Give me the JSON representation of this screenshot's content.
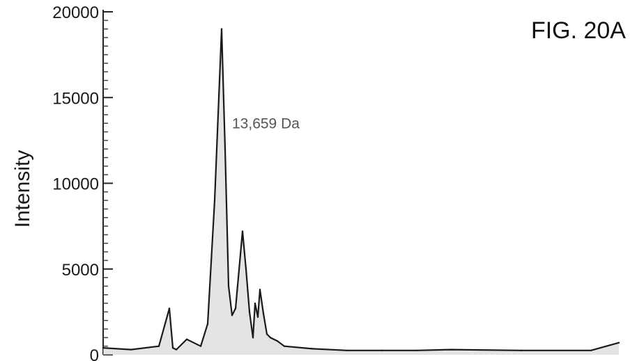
{
  "figure_label": "FIG. 20A",
  "chart_data": {
    "type": "line",
    "title": "",
    "xlabel": "",
    "ylabel": "Intensity",
    "ylim": [
      0,
      20000
    ],
    "yticks": [
      0,
      5000,
      10000,
      15000,
      20000
    ],
    "ytick_labels": [
      "0",
      "5000",
      "10000",
      "15000",
      "20000"
    ],
    "grid": false,
    "x": [
      0,
      40,
      80,
      95,
      100,
      105,
      120,
      140,
      150,
      160,
      170,
      175,
      180,
      185,
      190,
      200,
      205,
      210,
      215,
      218,
      222,
      225,
      230,
      235,
      240,
      250,
      260,
      300,
      350,
      400,
      450,
      500,
      600,
      700,
      740
    ],
    "y": [
      400,
      300,
      500,
      2700,
      400,
      300,
      900,
      500,
      1800,
      9000,
      19000,
      12000,
      4000,
      2300,
      2700,
      7200,
      5000,
      2500,
      1000,
      3000,
      2200,
      3800,
      2400,
      1200,
      1000,
      800,
      500,
      350,
      250,
      250,
      250,
      300,
      250,
      250,
      700
    ],
    "annotations": [
      {
        "text": "13,659 Da",
        "x": 170,
        "y": 19000
      }
    ],
    "color": "#1a1a1a"
  }
}
